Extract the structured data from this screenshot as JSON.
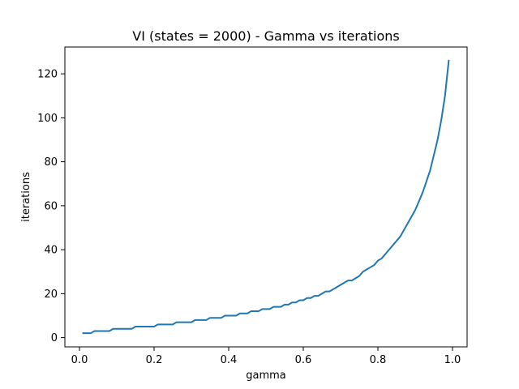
{
  "chart_data": {
    "type": "line",
    "title": "VI (states = 2000) - Gamma vs iterations",
    "xlabel": "gamma",
    "ylabel": "iterations",
    "xlim": [
      -0.0392,
      1.0392
    ],
    "ylim": [
      -4.2,
      132.2
    ],
    "xticks": [
      0.0,
      0.2,
      0.4,
      0.6,
      0.8,
      1.0
    ],
    "xtick_labels": [
      "0.0",
      "0.2",
      "0.4",
      "0.6",
      "0.8",
      "1.0"
    ],
    "yticks": [
      0,
      20,
      40,
      60,
      80,
      100,
      120
    ],
    "ytick_labels": [
      "0",
      "20",
      "40",
      "60",
      "80",
      "100",
      "120"
    ],
    "grid": false,
    "legend": false,
    "series": [
      {
        "color": "#1f77b4",
        "x": [
          0.01,
          0.02,
          0.03,
          0.04,
          0.05,
          0.06,
          0.07,
          0.08,
          0.09,
          0.1,
          0.11,
          0.12,
          0.13,
          0.14,
          0.15,
          0.16,
          0.17,
          0.18,
          0.19,
          0.2,
          0.21,
          0.22,
          0.23,
          0.24,
          0.25,
          0.26,
          0.27,
          0.28,
          0.29,
          0.3,
          0.31,
          0.32,
          0.33,
          0.34,
          0.35,
          0.36,
          0.37,
          0.38,
          0.39,
          0.4,
          0.41,
          0.42,
          0.43,
          0.44,
          0.45,
          0.46,
          0.47,
          0.48,
          0.49,
          0.5,
          0.51,
          0.52,
          0.53,
          0.54,
          0.55,
          0.56,
          0.57,
          0.58,
          0.59,
          0.6,
          0.61,
          0.62,
          0.63,
          0.64,
          0.65,
          0.66,
          0.67,
          0.68,
          0.69,
          0.7,
          0.71,
          0.72,
          0.73,
          0.74,
          0.75,
          0.76,
          0.77,
          0.78,
          0.79,
          0.8,
          0.81,
          0.82,
          0.83,
          0.84,
          0.85,
          0.86,
          0.87,
          0.88,
          0.89,
          0.9,
          0.91,
          0.92,
          0.93,
          0.94,
          0.95,
          0.96,
          0.97,
          0.98,
          0.99
        ],
        "y": [
          2,
          2,
          2,
          3,
          3,
          3,
          3,
          3,
          4,
          4,
          4,
          4,
          4,
          4,
          5,
          5,
          5,
          5,
          5,
          5,
          6,
          6,
          6,
          6,
          6,
          7,
          7,
          7,
          7,
          7,
          8,
          8,
          8,
          8,
          9,
          9,
          9,
          9,
          10,
          10,
          10,
          10,
          11,
          11,
          11,
          12,
          12,
          12,
          13,
          13,
          13,
          14,
          14,
          14,
          15,
          15,
          16,
          16,
          17,
          17,
          18,
          18,
          19,
          19,
          20,
          21,
          21,
          22,
          23,
          24,
          25,
          26,
          26,
          27,
          28,
          30,
          31,
          32,
          33,
          35,
          36,
          38,
          40,
          42,
          44,
          46,
          49,
          52,
          55,
          58,
          62,
          66,
          71,
          76,
          83,
          90,
          99,
          110,
          126
        ]
      }
    ]
  }
}
